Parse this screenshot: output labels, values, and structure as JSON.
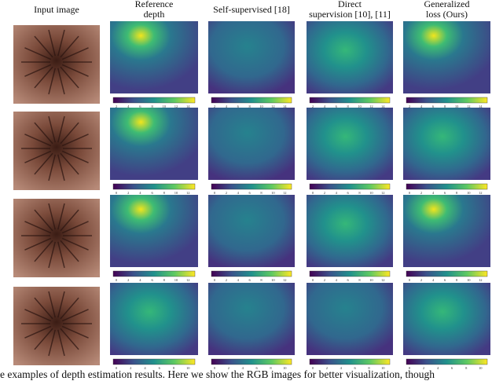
{
  "columns": [
    [
      "Input image"
    ],
    [
      "Reference",
      "depth"
    ],
    [
      "Self-supervised [18]"
    ],
    [
      "Direct",
      "supervision [10], [11]"
    ],
    [
      "Generalized",
      "loss (Ours)"
    ]
  ],
  "rows": [
    {
      "colorbar_ticks": [
        "2",
        "4",
        "6",
        "8",
        "10",
        "12",
        "14"
      ]
    },
    {
      "colorbar_ticks": [
        "0",
        "2",
        "4",
        "6",
        "8",
        "10",
        "12"
      ]
    },
    {
      "colorbar_ticks": [
        "0",
        "2",
        "4",
        "6",
        "8",
        "10",
        "12"
      ]
    },
    {
      "colorbar_ticks": [
        "0",
        "2",
        "4",
        "6",
        "8",
        "10"
      ]
    }
  ],
  "caption": "e examples of depth estimation results. Here we show the RGB images for better visualization, though"
}
